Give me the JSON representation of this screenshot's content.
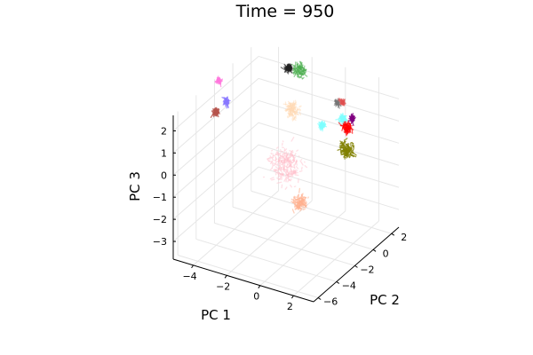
{
  "chart_data": {
    "type": "scatter",
    "title": "Time = 950",
    "xlabel": "PC 1",
    "ylabel": "PC 2",
    "zlabel": "PC 3",
    "xlim": [
      -5.2,
      3.2
    ],
    "ylim": [
      -6.5,
      2.8
    ],
    "zlim": [
      -3.8,
      2.7
    ],
    "x_ticks": [
      -4,
      -2,
      0,
      2
    ],
    "y_ticks": [
      -6,
      -4,
      -2,
      0,
      2
    ],
    "z_ticks": [
      -3,
      -2,
      -1,
      0,
      1,
      2
    ],
    "x_tick_labels": [
      "−4",
      "−2",
      "0",
      "2"
    ],
    "y_tick_labels": [
      "−6",
      "−4",
      "−2",
      "0",
      "2"
    ],
    "z_tick_labels": [
      "−3",
      "−2",
      "−1",
      "0",
      "1",
      "2"
    ],
    "grid": true,
    "legend": "none",
    "series": [
      {
        "color": "#222222",
        "opacity": 0.6,
        "x": -2.9,
        "y": 1.9,
        "z": 2.3,
        "spread": 0.25
      },
      {
        "color": "#4caf50",
        "opacity": 0.55,
        "x": -2.2,
        "y": 1.8,
        "z": 2.4,
        "spread": 0.45
      },
      {
        "color": "#ff77dd",
        "opacity": 0.7,
        "x": -4.6,
        "y": -2.6,
        "z": 3.0,
        "spread": 0.12
      },
      {
        "color": "#8877ff",
        "opacity": 0.75,
        "x": -4.1,
        "y": -2.7,
        "z": 2.2,
        "spread": 0.15
      },
      {
        "color": "#b5534b",
        "opacity": 0.8,
        "x": -4.5,
        "y": -3.1,
        "z": 1.8,
        "spread": 0.15
      },
      {
        "color": "#ffd9b3",
        "opacity": 0.5,
        "x": -1.1,
        "y": -1.0,
        "z": 1.9,
        "spread": 0.5
      },
      {
        "color": "#ffc0cb",
        "opacity": 0.5,
        "x": -0.9,
        "y": -2.1,
        "z": -0.1,
        "spread": 1.2
      },
      {
        "color": "#ffb090",
        "opacity": 0.6,
        "x": 0.2,
        "y": -2.5,
        "z": -1.4,
        "spread": 0.5
      },
      {
        "color": "#7fffff",
        "opacity": 0.6,
        "x": 1.6,
        "y": -0.4,
        "z": 1.9,
        "spread": 0.25
      },
      {
        "color": "#777777",
        "opacity": 0.6,
        "x": 1.1,
        "y": -0.1,
        "z": 2.4,
        "spread": 0.12
      },
      {
        "color": "#e05050",
        "opacity": 0.6,
        "x": 1.3,
        "y": 0.1,
        "z": 2.4,
        "spread": 0.12
      },
      {
        "color": "#7fffff",
        "opacity": 0.6,
        "x": 0.7,
        "y": -1.0,
        "z": 1.6,
        "spread": 0.22
      },
      {
        "color": "#ff0000",
        "opacity": 0.65,
        "x": 1.8,
        "y": -0.3,
        "z": 1.5,
        "spread": 0.35
      },
      {
        "color": "#800080",
        "opacity": 0.8,
        "x": 2.0,
        "y": -0.1,
        "z": 1.9,
        "spread": 0.12
      },
      {
        "color": "#808000",
        "opacity": 0.75,
        "x": 1.9,
        "y": -0.5,
        "z": 0.6,
        "spread": 0.55
      }
    ]
  }
}
